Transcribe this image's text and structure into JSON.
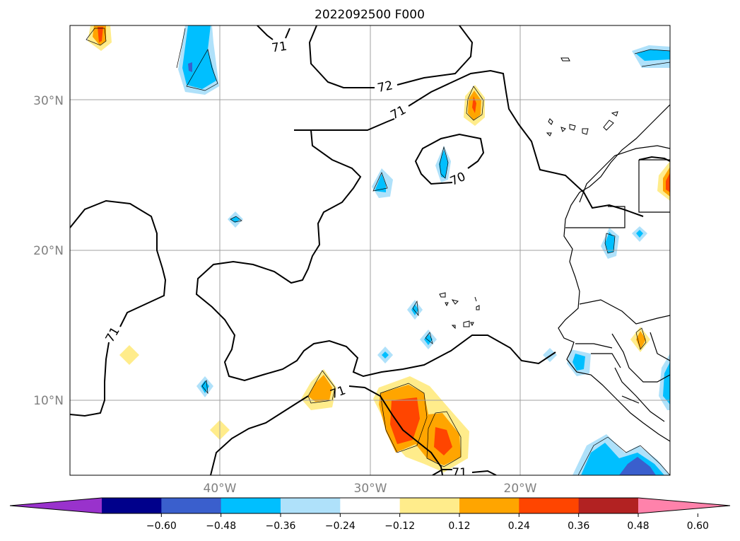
{
  "title": "2022092500 F000",
  "map": {
    "lat_labels": [
      "30°N",
      "20°N",
      "10°N"
    ],
    "lon_labels": [
      "40°W",
      "30°W",
      "20°W"
    ],
    "gridlines": true,
    "contour_labels": [
      "71",
      "72",
      "71",
      "70",
      "71",
      "71",
      "71"
    ]
  },
  "colorbar": {
    "orientation": "horizontal",
    "extend": "both",
    "colors": [
      "#9932cc",
      "#00008b",
      "#3a5fcd",
      "#00bfff",
      "#afe1fa",
      "#ffffff",
      "#ffec8b",
      "#ffa500",
      "#ff4500",
      "#b22222",
      "#ff82ab"
    ],
    "tick_labels": [
      "−0.60",
      "−0.48",
      "−0.36",
      "−0.24",
      "−0.12",
      "0.12",
      "0.24",
      "0.36",
      "0.48",
      "0.60"
    ]
  },
  "palette": {
    "light_blue": "#afe1fa",
    "blue": "#00bfff",
    "royal": "#3a5fcd",
    "yellow": "#ffec8b",
    "orange": "#ffa500",
    "red": "#ff4500"
  }
}
